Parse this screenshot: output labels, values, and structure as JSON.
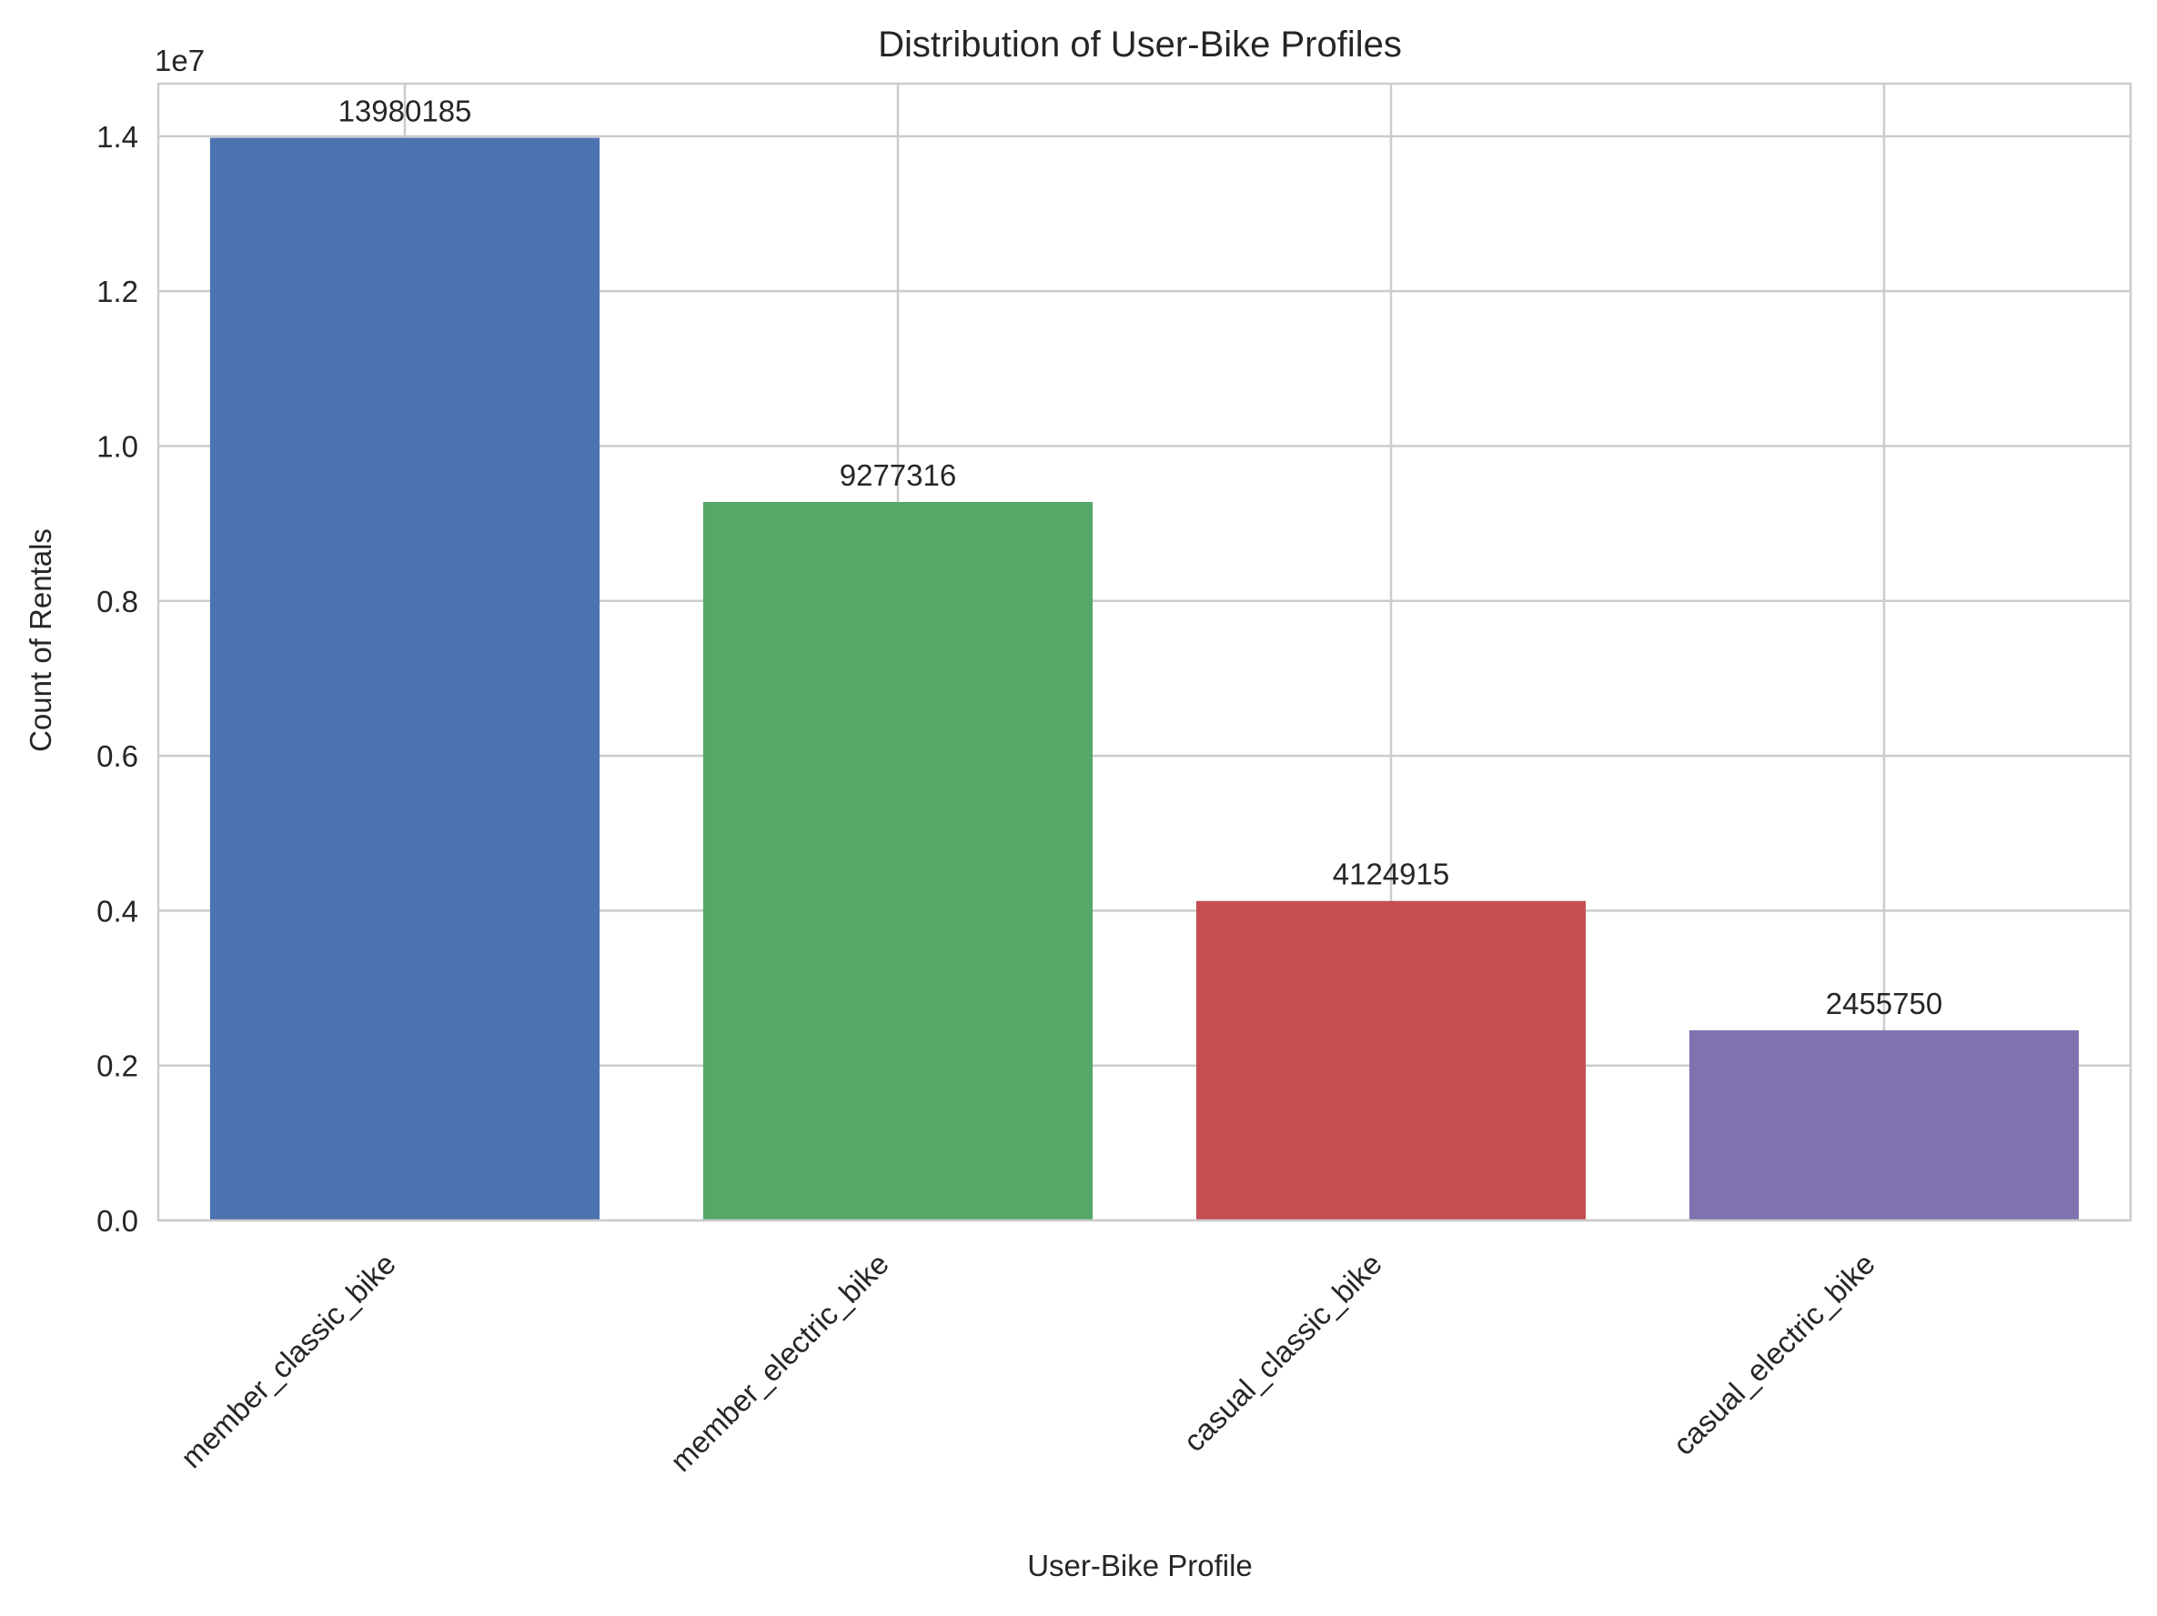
{
  "chart_data": {
    "type": "bar",
    "title": "Distribution of User-Bike Profiles",
    "xlabel": "User-Bike Profile",
    "ylabel": "Count of Rentals",
    "offset_label": "1e7",
    "categories": [
      "member_classic_bike",
      "member_electric_bike",
      "casual_classic_bike",
      "casual_electric_bike"
    ],
    "values": [
      13980185,
      9277316,
      4124915,
      2455750
    ],
    "data_labels": [
      "13980185",
      "9277316",
      "4124915",
      "2455750"
    ],
    "colors": [
      "#4c72b0",
      "#55a868",
      "#c44e52",
      "#8172b2"
    ],
    "ylim": [
      0,
      14679194
    ],
    "yticks": [
      0,
      2000000,
      4000000,
      6000000,
      8000000,
      10000000,
      12000000,
      14000000
    ],
    "ytick_labels": [
      "0.0",
      "0.2",
      "0.4",
      "0.6",
      "0.8",
      "1.0",
      "1.2",
      "1.4"
    ],
    "grid": true,
    "legend": "none"
  }
}
